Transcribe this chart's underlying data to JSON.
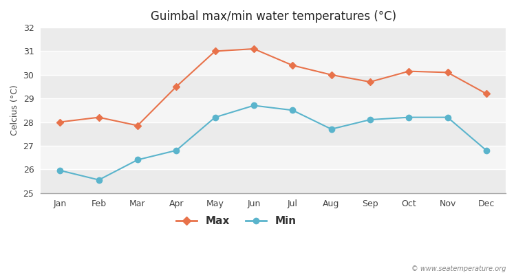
{
  "months": [
    "Jan",
    "Feb",
    "Mar",
    "Apr",
    "May",
    "Jun",
    "Jul",
    "Aug",
    "Sep",
    "Oct",
    "Nov",
    "Dec"
  ],
  "max_temps": [
    28.0,
    28.2,
    27.85,
    29.5,
    31.0,
    31.1,
    30.4,
    30.0,
    29.7,
    30.15,
    30.1,
    29.2
  ],
  "min_temps": [
    25.95,
    25.55,
    26.4,
    26.8,
    28.2,
    28.7,
    28.5,
    27.7,
    28.1,
    28.2,
    28.2,
    26.8
  ],
  "max_color": "#e8724a",
  "min_color": "#5ab4cc",
  "title": "Guimbal max/min water temperatures (°C)",
  "ylabel": "Celcius (°C)",
  "ylim": [
    25,
    32
  ],
  "yticks": [
    25,
    26,
    27,
    28,
    29,
    30,
    31,
    32
  ],
  "bg_color": "#ffffff",
  "plot_bg_color": "#ffffff",
  "band_colors": [
    "#ebebeb",
    "#f5f5f5"
  ],
  "grid_color": "#cccccc",
  "watermark": "© www.seatemperature.org",
  "legend_labels": [
    "Max",
    "Min"
  ]
}
